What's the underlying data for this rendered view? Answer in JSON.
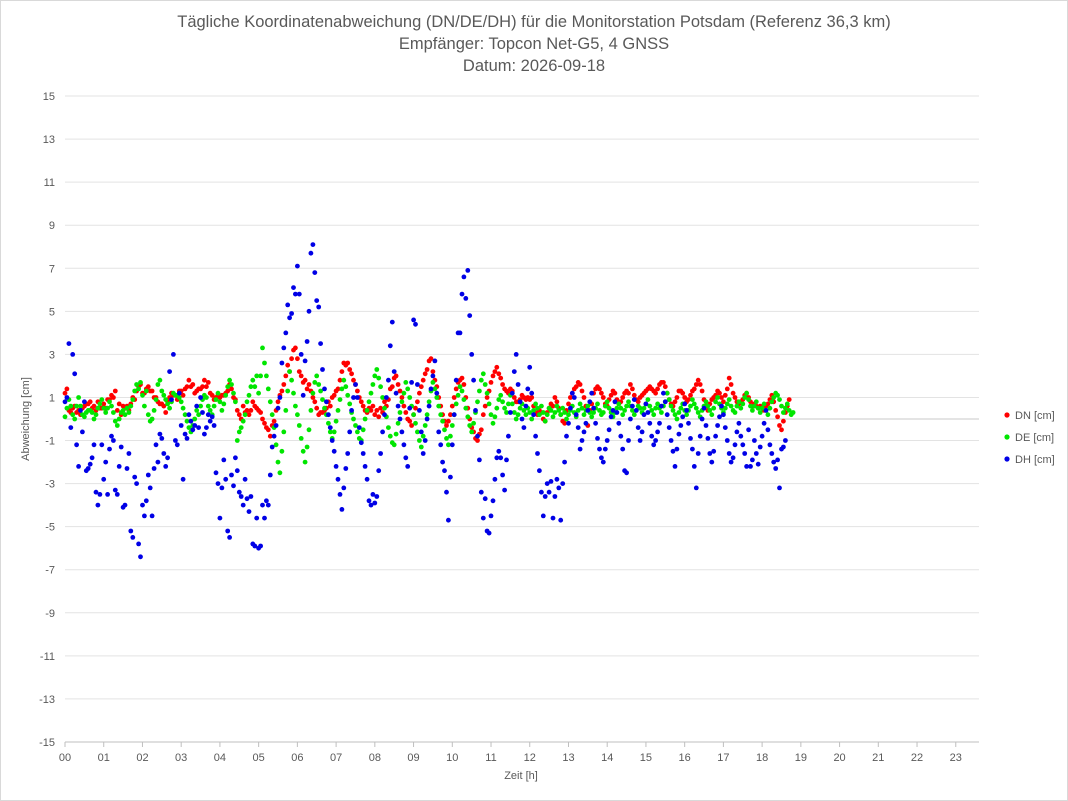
{
  "chart_data": {
    "type": "scatter",
    "title": [
      "Tägliche Koordinatenabweichung (DN/DE/DH) für die Monitorstation Potsdam (Referenz 36,3 km)",
      "Empfänger: Topcon Net-G5, 4 GNSS",
      "Datum: 2026-09-18"
    ],
    "xlabel": "Zeit [h]",
    "ylabel": "Abweichung [cm]",
    "xlim": [
      0,
      23.6
    ],
    "ylim": [
      -15,
      15
    ],
    "x_ticks": [
      "00",
      "01",
      "02",
      "03",
      "04",
      "05",
      "06",
      "07",
      "08",
      "09",
      "10",
      "11",
      "12",
      "13",
      "14",
      "15",
      "16",
      "17",
      "18",
      "19",
      "20",
      "21",
      "22",
      "23"
    ],
    "y_ticks": [
      "15",
      "13",
      "11",
      "9",
      "7",
      "5",
      "3",
      "1",
      "-1",
      "-3",
      "-5",
      "-7",
      "-9",
      "-11",
      "-13",
      "-15"
    ],
    "grid": true,
    "legend_position": "right",
    "sample_interval_h": 0.05,
    "series": [
      {
        "name": "DN [cm]",
        "color": "#ff0000",
        "values": [
          1.2,
          1.4,
          0.4,
          0.3,
          0.5,
          0.6,
          0.3,
          0.4,
          0.2,
          0.5,
          0.6,
          0.7,
          0.7,
          0.8,
          0.5,
          0.6,
          0.4,
          0.8,
          0.5,
          0.5,
          0.7,
          0.5,
          0.9,
          0.9,
          1.1,
          1.0,
          1.3,
          0.4,
          0.7,
          0.2,
          0.6,
          0.5,
          0.6,
          0.4,
          0.7,
          1.0,
          0.9,
          1.3,
          1.5,
          1.6,
          1.2,
          1.2,
          1.4,
          1.5,
          1.3,
          1.3,
          1.0,
          1.0,
          0.8,
          0.7,
          0.7,
          0.6,
          0.3,
          0.8,
          1.0,
          1.2,
          1.1,
          1.1,
          0.9,
          1.3,
          1.3,
          1.1,
          1.4,
          1.5,
          1.8,
          1.5,
          1.6,
          1.2,
          1.3,
          1.4,
          1.4,
          1.5,
          1.8,
          1.5,
          1.7,
          1.2,
          1.1,
          0.9,
          1.0,
          1.1,
          1.0,
          1.1,
          1.1,
          1.2,
          1.3,
          1.6,
          1.4,
          1.0,
          0.9,
          0.4,
          0.2,
          0.0,
          0.6,
          0.3,
          0.4,
          0.2,
          0.4,
          0.8,
          0.6,
          0.5,
          0.4,
          0.3,
          0.0,
          -0.2,
          -0.4,
          -0.5,
          -0.8,
          -0.3,
          -0.1,
          0.4,
          0.8,
          1.1,
          1.3,
          1.6,
          2.0,
          2.5,
          2.2,
          2.8,
          3.2,
          3.3,
          2.8,
          2.2,
          2.0,
          1.7,
          1.8,
          1.4,
          1.6,
          1.3,
          1.0,
          0.8,
          0.5,
          0.2,
          0.3,
          0.3,
          0.4,
          0.5,
          0.8,
          0.6,
          1.0,
          1.1,
          1.3,
          1.4,
          1.8,
          2.2,
          2.6,
          2.5,
          2.6,
          2.3,
          2.1,
          1.8,
          1.6,
          1.3,
          1.0,
          0.8,
          0.6,
          0.4,
          0.3,
          0.5,
          0.4,
          0.6,
          0.2,
          0.4,
          0.1,
          0.5,
          0.3,
          0.8,
          0.6,
          0.9,
          1.4,
          1.5,
          1.9,
          2.0,
          1.6,
          1.3,
          1.0,
          0.6,
          0.3,
          0.0,
          -0.1,
          -0.3,
          0.2,
          0.5,
          0.8,
          1.2,
          1.5,
          1.8,
          2.1,
          2.3,
          2.7,
          2.8,
          2.2,
          1.8,
          1.5,
          1.0,
          0.6,
          0.2,
          -0.1,
          -0.3,
          -0.1,
          0.2,
          0.6,
          1.0,
          1.4,
          1.7,
          1.8,
          1.9,
          1.6,
          1.0,
          0.5,
          0.0,
          -0.4,
          -0.6,
          -0.9,
          -1.0,
          -0.7,
          -0.5,
          0.2,
          0.6,
          1.0,
          1.3,
          1.7,
          2.0,
          2.2,
          2.4,
          2.1,
          1.9,
          1.6,
          1.4,
          1.3,
          1.2,
          1.4,
          1.3,
          1.0,
          0.8,
          0.8,
          0.9,
          1.1,
          1.0,
          0.9,
          1.0,
          0.9,
          1.0,
          0.6,
          0.3,
          0.2,
          0.4,
          0.3,
          0.0,
          -0.1,
          0.3,
          0.5,
          0.7,
          0.6,
          1.0,
          0.8,
          0.5,
          0.2,
          -0.1,
          -0.2,
          0.4,
          0.7,
          1.0,
          1.2,
          1.4,
          1.5,
          1.7,
          1.6,
          1.3,
          1.0,
          0.6,
          -0.3,
          0.4,
          0.7,
          1.2,
          1.4,
          1.5,
          1.4,
          1.2,
          1.0,
          0.7,
          0.6,
          0.9,
          1.1,
          1.3,
          1.2,
          0.9,
          0.7,
          0.8,
          1.0,
          1.2,
          1.3,
          1.2,
          1.6,
          1.4,
          1.1,
          0.9,
          0.8,
          1.0,
          1.1,
          1.2,
          1.3,
          1.4,
          1.5,
          1.4,
          1.3,
          1.2,
          1.4,
          1.6,
          1.7,
          1.7,
          1.5,
          1.2,
          0.9,
          0.7,
          0.6,
          0.8,
          1.0,
          1.3,
          1.3,
          1.2,
          1.0,
          0.8,
          0.9,
          1.1,
          1.3,
          1.4,
          1.6,
          1.8,
          1.6,
          1.3,
          0.9,
          0.6,
          0.4,
          0.7,
          0.9,
          1.0,
          1.1,
          1.3,
          1.2,
          1.0,
          0.8,
          1.1,
          1.4,
          1.9,
          1.6,
          1.2,
          1.0,
          0.8,
          0.7,
          0.8,
          0.9,
          1.1,
          1.2,
          1.0,
          0.8,
          0.6,
          0.7,
          0.6,
          0.5,
          0.6,
          0.5,
          0.4,
          0.6,
          0.7,
          0.9,
          1.1,
          0.8,
          0.4,
          0.1,
          -0.3,
          -0.5,
          -0.1,
          0.3,
          0.6,
          0.9
        ]
      },
      {
        "name": "DE [cm]",
        "color": "#00e600",
        "values": [
          0.1,
          0.5,
          0.9,
          0.6,
          0.2,
          0.0,
          0.6,
          1.0,
          0.6,
          0.2,
          0.1,
          0.3,
          0.4,
          0.4,
          0.3,
          0.0,
          0.2,
          0.5,
          0.7,
          0.9,
          0.5,
          0.3,
          0.5,
          0.8,
          0.6,
          0.3,
          -0.1,
          -0.3,
          0.0,
          0.3,
          0.4,
          0.2,
          0.5,
          0.3,
          0.6,
          0.9,
          1.3,
          1.6,
          1.4,
          1.7,
          1.1,
          0.6,
          1.3,
          0.2,
          -0.1,
          0.0,
          0.4,
          0.9,
          1.6,
          1.8,
          1.3,
          1.1,
          0.9,
          0.7,
          0.5,
          0.8,
          1.2,
          1.1,
          1.1,
          1.0,
          0.8,
          0.5,
          0.2,
          -0.1,
          -0.4,
          -0.6,
          -0.3,
          0.0,
          0.4,
          0.2,
          0.6,
          0.9,
          1.1,
          1.0,
          0.6,
          0.4,
          0.2,
          0.6,
          0.9,
          1.2,
          0.8,
          0.4,
          0.7,
          1.1,
          1.5,
          1.8,
          1.6,
          1.2,
          0.8,
          -1.0,
          -0.6,
          -0.4,
          -0.1,
          0.2,
          0.8,
          1.1,
          1.5,
          1.8,
          1.5,
          2.0,
          1.2,
          2.0,
          3.3,
          2.6,
          2.0,
          1.4,
          0.8,
          0.2,
          -0.4,
          -1.2,
          -2.0,
          -2.5,
          -1.5,
          -0.6,
          0.4,
          1.3,
          2.2,
          1.8,
          1.2,
          0.6,
          0.2,
          -0.3,
          -0.9,
          -1.5,
          -2.0,
          -1.3,
          -0.5,
          0.4,
          1.2,
          1.7,
          2.0,
          1.6,
          1.3,
          0.9,
          0.5,
          0.2,
          -0.2,
          -0.6,
          -0.9,
          -0.6,
          -0.1,
          0.4,
          0.9,
          1.4,
          1.8,
          1.5,
          1.1,
          0.7,
          0.3,
          0.0,
          -0.3,
          -0.6,
          -0.9,
          -1.0,
          -0.5,
          0.0,
          0.4,
          0.8,
          1.2,
          1.6,
          2.0,
          2.3,
          1.9,
          1.5,
          1.0,
          0.5,
          0.1,
          -0.4,
          -0.8,
          -1.1,
          -1.2,
          -0.7,
          -0.2,
          0.3,
          0.8,
          1.2,
          1.7,
          1.4,
          1.0,
          0.6,
          0.2,
          -0.2,
          -0.6,
          -1.0,
          -1.3,
          -0.8,
          -0.3,
          0.2,
          0.8,
          1.3,
          1.7,
          1.4,
          1.0,
          0.6,
          0.2,
          -0.1,
          -0.5,
          -0.9,
          -1.2,
          -0.8,
          -0.3,
          0.2,
          0.7,
          1.1,
          1.5,
          1.3,
          0.9,
          0.5,
          0.1,
          -0.3,
          -0.6,
          -0.2,
          0.3,
          0.8,
          1.3,
          1.8,
          2.1,
          1.6,
          1.2,
          0.7,
          0.2,
          -0.2,
          0.1,
          0.5,
          0.9,
          1.1,
          0.8,
          0.5,
          0.3,
          0.7,
          1.1,
          0.7,
          0.3,
          0.0,
          0.2,
          0.5,
          0.7,
          0.4,
          0.2,
          0.5,
          0.3,
          0.0,
          0.4,
          0.7,
          0.5,
          0.2,
          0.6,
          0.3,
          -0.1,
          0.2,
          0.5,
          0.4,
          0.1,
          0.3,
          0.6,
          0.4,
          0.2,
          0.5,
          0.3,
          0.0,
          0.2,
          0.4,
          0.6,
          0.3,
          0.1,
          0.4,
          0.7,
          0.5,
          0.2,
          0.4,
          0.6,
          0.3,
          0.1,
          0.3,
          0.5,
          0.7,
          0.4,
          0.2,
          0.3,
          0.6,
          0.8,
          0.5,
          0.3,
          0.1,
          0.3,
          0.5,
          0.7,
          0.5,
          0.2,
          0.4,
          0.6,
          0.8,
          0.6,
          0.4,
          0.2,
          0.4,
          0.6,
          0.5,
          0.3,
          0.5,
          0.7,
          0.9,
          0.6,
          0.4,
          0.2,
          0.5,
          0.7,
          0.5,
          0.3,
          0.6,
          0.8,
          1.2,
          0.9,
          0.6,
          0.4,
          0.2,
          0.0,
          0.3,
          0.5,
          0.7,
          0.4,
          0.2,
          0.4,
          0.6,
          0.9,
          0.7,
          0.5,
          0.3,
          0.1,
          0.4,
          0.6,
          0.8,
          0.6,
          0.4,
          0.2,
          0.5,
          0.8,
          1.0,
          0.7,
          0.5,
          0.3,
          0.5,
          0.7,
          0.9,
          0.6,
          0.4,
          0.3,
          0.6,
          0.8,
          0.5,
          0.7,
          1.0,
          1.2,
          0.9,
          0.6,
          0.4,
          0.6,
          0.8,
          0.5,
          0.3,
          0.5,
          0.7,
          0.4,
          0.2,
          0.5,
          0.8,
          1.0,
          1.2,
          1.1,
          0.9,
          0.6,
          0.3,
          0.5,
          0.7,
          0.4,
          0.2,
          0.3
        ]
      },
      {
        "name": "DH [cm]",
        "color": "#0000e6",
        "values": [
          0.8,
          1.0,
          3.5,
          -0.4,
          3.0,
          2.1,
          -1.2,
          -2.2,
          0.4,
          -0.6,
          0.8,
          -2.4,
          -2.3,
          -2.1,
          -1.8,
          -1.2,
          -3.4,
          -4.0,
          -3.5,
          -1.2,
          -2.8,
          -2.0,
          -3.5,
          -1.4,
          -0.8,
          -1.0,
          -3.3,
          -3.5,
          -2.2,
          -1.3,
          -4.1,
          -4.0,
          -2.3,
          -1.6,
          -5.2,
          -5.5,
          -2.7,
          -3.0,
          -5.8,
          -6.4,
          -4.0,
          -4.5,
          -3.8,
          -2.6,
          -3.2,
          -4.5,
          -2.3,
          -1.2,
          -2.0,
          -0.7,
          -0.9,
          -1.6,
          -2.2,
          -1.8,
          2.2,
          0.9,
          3.0,
          -1.0,
          -1.2,
          1.2,
          -0.3,
          -2.8,
          -0.7,
          -0.9,
          0.2,
          -0.1,
          -0.5,
          -0.3,
          0.6,
          -0.4,
          1.0,
          0.3,
          -0.7,
          -0.4,
          0.2,
          -0.1,
          0.1,
          -0.3,
          -2.5,
          -3.0,
          -4.6,
          -3.2,
          -1.9,
          -2.8,
          -5.2,
          -5.5,
          -2.6,
          -3.1,
          -1.8,
          -2.4,
          -3.4,
          -3.6,
          -4.0,
          -2.8,
          -3.7,
          -4.3,
          -3.6,
          -5.8,
          -5.9,
          -4.6,
          -6.0,
          -5.9,
          -4.0,
          -4.6,
          -3.8,
          -4.0,
          -2.6,
          -1.3,
          -0.8,
          -0.3,
          0.5,
          1.0,
          2.6,
          3.3,
          4.0,
          5.3,
          4.7,
          4.9,
          6.1,
          5.8,
          7.1,
          5.8,
          3.0,
          1.1,
          2.7,
          3.6,
          5.0,
          7.7,
          8.1,
          6.8,
          5.5,
          5.2,
          3.5,
          2.3,
          1.4,
          0.8,
          0.2,
          -0.4,
          -1.0,
          -1.5,
          -2.2,
          -2.8,
          -3.5,
          -4.2,
          -3.2,
          -2.3,
          -1.6,
          -0.6,
          0.4,
          1.0,
          1.6,
          1.0,
          -0.4,
          -1.1,
          -1.6,
          -2.2,
          -2.8,
          -3.8,
          -4.0,
          -3.5,
          -3.9,
          -3.6,
          -2.4,
          -1.6,
          -0.6,
          0.2,
          1.0,
          1.8,
          3.4,
          4.5,
          2.2,
          1.2,
          0.6,
          0.0,
          -0.6,
          -1.2,
          -1.8,
          -2.2,
          0.5,
          1.7,
          4.6,
          4.4,
          1.6,
          0.4,
          -0.6,
          -1.6,
          -1.0,
          0.0,
          0.6,
          1.4,
          2.0,
          2.7,
          1.2,
          -0.6,
          -1.2,
          -2.0,
          -2.4,
          -3.4,
          -4.7,
          -2.7,
          -1.2,
          0.2,
          1.8,
          4.0,
          4.0,
          5.8,
          6.6,
          5.6,
          6.9,
          4.8,
          3.0,
          1.8,
          0.4,
          -0.8,
          -1.9,
          -3.4,
          -4.6,
          -3.7,
          -5.2,
          -5.3,
          -4.5,
          -3.8,
          -2.8,
          -1.8,
          -1.5,
          -1.8,
          -2.6,
          -3.3,
          -1.9,
          -0.8,
          0.3,
          1.2,
          2.2,
          3.0,
          1.6,
          0.8,
          0.0,
          -0.4,
          0.6,
          1.4,
          2.4,
          1.2,
          0.2,
          -0.8,
          -1.6,
          -2.4,
          -3.4,
          -4.5,
          -3.6,
          -3.0,
          -3.4,
          -2.9,
          -4.6,
          -3.6,
          -2.8,
          -3.2,
          -4.7,
          -3.0,
          -2.0,
          -0.8,
          -0.2,
          0.5,
          1.2,
          1.0,
          0.2,
          -0.4,
          -1.4,
          -1.0,
          -0.6,
          -0.2,
          0.4,
          0.8,
          1.2,
          0.5,
          -0.2,
          -0.9,
          -1.4,
          -1.8,
          -2.0,
          -1.4,
          -1.0,
          -0.5,
          0.1,
          0.4,
          0.8,
          0.3,
          -0.2,
          -0.8,
          -1.4,
          -2.4,
          -2.5,
          -1.0,
          0.0,
          0.6,
          0.9,
          0.4,
          -0.4,
          -1.0,
          -0.6,
          0.2,
          0.7,
          0.3,
          -0.2,
          -0.8,
          -1.2,
          -1.0,
          -0.6,
          -0.2,
          0.6,
          1.2,
          0.8,
          0.2,
          -0.4,
          -1.0,
          -1.5,
          -2.2,
          -1.4,
          -0.7,
          -0.3,
          0.1,
          0.7,
          0.4,
          -0.2,
          -0.9,
          -1.4,
          -2.2,
          -3.2,
          -1.6,
          -0.8,
          0.0,
          0.5,
          -0.3,
          -0.9,
          -1.6,
          -2.0,
          -1.5,
          -0.8,
          -0.3,
          0.1,
          0.6,
          0.2,
          -0.4,
          -1.0,
          -1.6,
          -2.0,
          -1.8,
          -1.2,
          -0.6,
          -0.2,
          -0.8,
          -1.2,
          -1.6,
          -2.2,
          -0.5,
          -2.2,
          -1.9,
          -1.0,
          -1.6,
          -2.1,
          -1.3,
          -0.8,
          -0.2,
          0.4,
          -0.5,
          -1.2,
          -1.6,
          -2.0,
          -2.3,
          -1.9,
          -3.2,
          -1.4,
          -1.3,
          -1.0
        ]
      }
    ]
  }
}
